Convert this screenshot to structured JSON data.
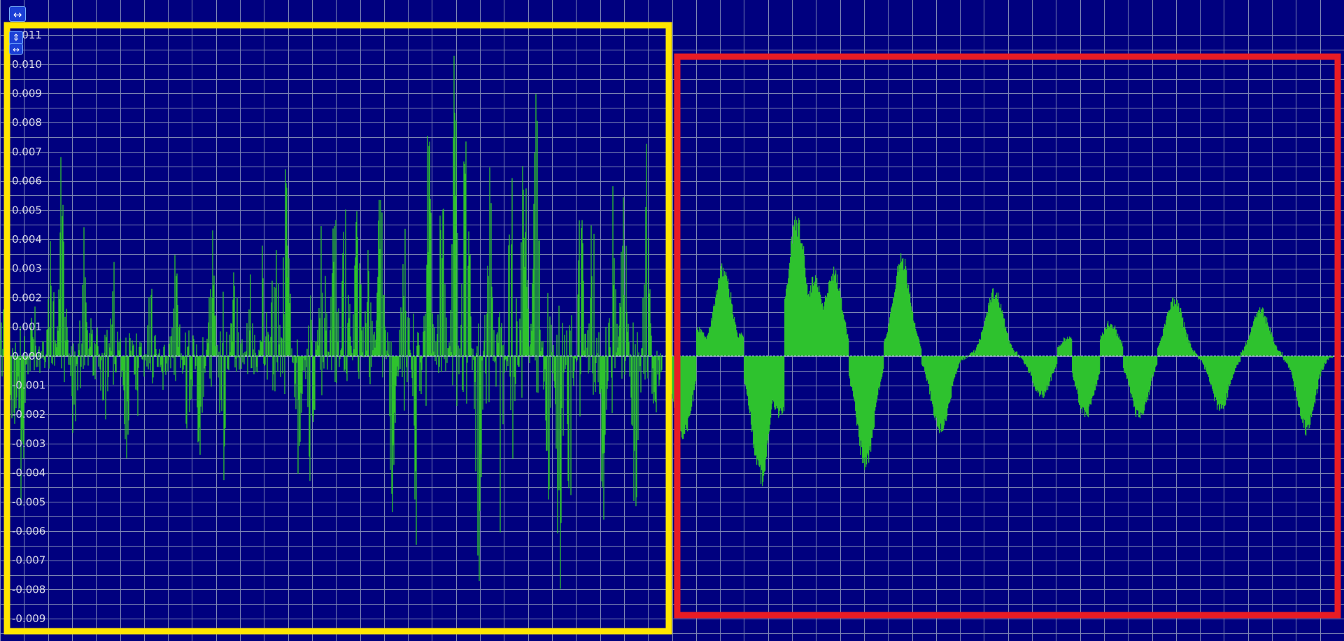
{
  "controls": {
    "pan_x_icon": "↔",
    "zoom_y_icon": "⇕",
    "pan_x2_icon": "↔"
  },
  "colors": {
    "background": "#00007f",
    "grid": "#7d86b4",
    "waveform": "#2ec22e",
    "zero_line": "#c8d2ff",
    "box_left": "#ffe600",
    "box_right": "#e81c24",
    "axis_text": "#d8d8e8"
  },
  "chart_data": {
    "type": "area",
    "title": "",
    "xlabel": "",
    "ylabel": "",
    "ylim": [
      -0.0095,
      0.0122
    ],
    "yticks": [
      0.011,
      0.01,
      0.009,
      0.008,
      0.007,
      0.006,
      0.005,
      0.004,
      0.003,
      0.002,
      0.001,
      0.0,
      -0.001,
      -0.002,
      -0.003,
      -0.004,
      -0.005,
      -0.006,
      -0.007,
      -0.008,
      -0.009
    ],
    "ytick_labels": [
      "0.011",
      "0.010",
      "0.009",
      "0.008",
      "0.007",
      "0.006",
      "0.005",
      "0.004",
      "0.003",
      "0.002",
      "0.001",
      "0.000",
      "-0.001",
      "-0.002",
      "-0.003",
      "-0.004",
      "-0.005",
      "-0.006",
      "-0.007",
      "-0.008",
      "-0.009"
    ],
    "grid": true,
    "x_gridlines": 56,
    "segments": [
      {
        "name": "",
        "x_range": [
          0,
          0.493
        ],
        "style": "spiky",
        "peaks": [
          [
            0.004,
            0.003
          ],
          [
            0.01,
            -0.004
          ],
          [
            0.016,
            -0.006
          ],
          [
            0.025,
            0.002
          ],
          [
            0.038,
            0.004
          ],
          [
            0.046,
            0.007
          ],
          [
            0.055,
            -0.003
          ],
          [
            0.062,
            0.005
          ],
          [
            0.07,
            0.002
          ],
          [
            0.078,
            -0.003
          ],
          [
            0.085,
            0.003
          ],
          [
            0.094,
            -0.0035
          ],
          [
            0.103,
            -0.002
          ],
          [
            0.112,
            0.0035
          ],
          [
            0.122,
            -0.0015
          ],
          [
            0.131,
            0.004
          ],
          [
            0.14,
            -0.0035
          ],
          [
            0.149,
            -0.0045
          ],
          [
            0.158,
            0.005
          ],
          [
            0.166,
            -0.0045
          ],
          [
            0.175,
            0.004
          ],
          [
            0.186,
            0.003
          ],
          [
            0.196,
            0.0045
          ],
          [
            0.205,
            0.006
          ],
          [
            0.213,
            0.0075
          ],
          [
            0.222,
            -0.005
          ],
          [
            0.231,
            -0.0075
          ],
          [
            0.24,
            0.006
          ],
          [
            0.249,
            0.0055
          ],
          [
            0.257,
            0.007
          ],
          [
            0.266,
            0.01
          ],
          [
            0.274,
            0.0045
          ],
          [
            0.283,
            0.007
          ],
          [
            0.292,
            -0.0065
          ],
          [
            0.301,
            0.0055
          ],
          [
            0.31,
            -0.0085
          ],
          [
            0.319,
            0.009
          ],
          [
            0.329,
            0.0065
          ],
          [
            0.338,
            0.0115
          ],
          [
            0.347,
            0.0118
          ],
          [
            0.356,
            -0.009
          ],
          [
            0.364,
            0.007
          ],
          [
            0.372,
            -0.0065
          ],
          [
            0.381,
            0.0095
          ],
          [
            0.39,
            0.0085
          ],
          [
            0.399,
            0.0095
          ],
          [
            0.408,
            -0.0065
          ],
          [
            0.416,
            -0.009
          ],
          [
            0.424,
            -0.0055
          ],
          [
            0.432,
            0.007
          ],
          [
            0.441,
            0.0065
          ],
          [
            0.449,
            -0.006
          ],
          [
            0.456,
            0.0065
          ],
          [
            0.464,
            0.0065
          ],
          [
            0.473,
            -0.0085
          ],
          [
            0.481,
            0.0075
          ],
          [
            0.488,
            -0.0025
          ]
        ]
      },
      {
        "name": "",
        "x_range": [
          0.497,
          0.992
        ],
        "style": "smooth",
        "peaks": [
          [
            0.508,
            -0.003
          ],
          [
            0.52,
            0.001
          ],
          [
            0.538,
            0.0032
          ],
          [
            0.552,
            0.0008
          ],
          [
            0.566,
            -0.0045
          ],
          [
            0.58,
            -0.0022
          ],
          [
            0.593,
            0.005
          ],
          [
            0.606,
            0.0028
          ],
          [
            0.62,
            0.0031
          ],
          [
            0.644,
            -0.004
          ],
          [
            0.671,
            0.0036
          ],
          [
            0.7,
            -0.0028
          ],
          [
            0.74,
            0.0024
          ],
          [
            0.775,
            -0.0015
          ],
          [
            0.795,
            0.0007
          ],
          [
            0.808,
            -0.0022
          ],
          [
            0.826,
            0.0012
          ],
          [
            0.848,
            -0.0023
          ],
          [
            0.874,
            0.0021
          ],
          [
            0.908,
            -0.002
          ],
          [
            0.938,
            0.0017
          ],
          [
            0.972,
            -0.0027
          ]
        ]
      }
    ],
    "annotations": [
      {
        "label": "",
        "box_color": "yellow",
        "x_range": [
          0,
          0.497
        ]
      },
      {
        "label": "",
        "box_color": "red",
        "x_range": [
          0.503,
          0.997
        ]
      }
    ]
  }
}
